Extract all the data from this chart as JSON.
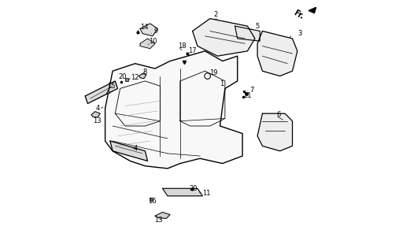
{
  "bg_color": "#ffffff",
  "line_color": "#000000",
  "fig_width": 5.21,
  "fig_height": 3.2,
  "dpi": 100
}
